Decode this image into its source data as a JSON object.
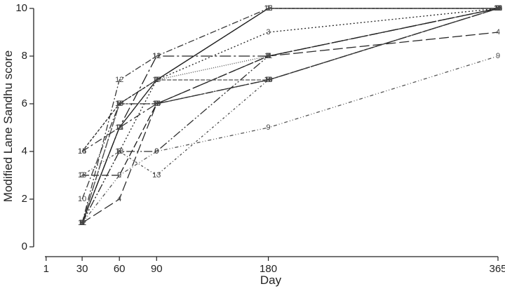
{
  "chart_data": {
    "type": "line",
    "xlabel": "Day",
    "ylabel": "Modified Lane Sandhu score",
    "x": [
      30,
      60,
      90,
      180,
      365
    ],
    "xticks": [
      1,
      30,
      60,
      90,
      180,
      365
    ],
    "yticks": [
      0,
      2,
      4,
      6,
      8,
      10
    ],
    "xlim": [
      0,
      365
    ],
    "ylim": [
      0,
      10
    ],
    "grid": false,
    "legend": "none",
    "series": [
      {
        "name": "1",
        "values": [
          1,
          5,
          7,
          10,
          10
        ],
        "color": "#111111",
        "dash": ""
      },
      {
        "name": "2",
        "values": [
          3,
          3,
          6,
          8,
          10
        ],
        "color": "#1a1a1a",
        "dash": "10,4"
      },
      {
        "name": "3",
        "values": [
          1,
          4,
          7,
          9,
          10
        ],
        "color": "#222222",
        "dash": "2,3"
      },
      {
        "name": "4",
        "values": [
          1,
          2,
          6,
          8,
          9
        ],
        "color": "#2a2a2a",
        "dash": "14,5"
      },
      {
        "name": "5",
        "values": [
          1,
          6,
          6,
          7,
          10
        ],
        "color": "#333333",
        "dash": "8,3,2,3"
      },
      {
        "name": "6",
        "values": [
          1,
          4,
          4,
          8,
          10
        ],
        "color": "#2f2f2f",
        "dash": "12,3,2,3,2,3"
      },
      {
        "name": "7",
        "values": [
          1,
          5,
          7,
          8,
          10
        ],
        "color": "#444444",
        "dash": "1,2"
      },
      {
        "name": "8",
        "values": [
          1,
          6,
          7,
          7,
          10
        ],
        "color": "#505050",
        "dash": "6,2"
      },
      {
        "name": "9",
        "values": [
          1,
          3,
          4,
          5,
          8
        ],
        "color": "#555555",
        "dash": "5,3,1,3,1,3"
      },
      {
        "name": "10",
        "values": [
          2,
          6,
          6,
          7,
          10
        ],
        "color": "#3a3a3a",
        "dash": "10,3,2,3"
      },
      {
        "name": "11",
        "values": [
          1,
          5,
          8,
          8,
          10
        ],
        "color": "#222222",
        "dash": "16,4,3,4"
      },
      {
        "name": "12",
        "values": [
          1,
          7,
          8,
          10,
          10
        ],
        "color": "#383838",
        "dash": "9,3,2,3"
      },
      {
        "name": "13",
        "values": [
          3,
          4,
          3,
          7,
          10
        ],
        "color": "#4a4a4a",
        "dash": "3,3,1,3"
      },
      {
        "name": "14",
        "values": [
          4,
          5,
          6,
          7,
          10
        ],
        "color": "#333333",
        "dash": "11,4,3,4"
      },
      {
        "name": "15",
        "values": [
          4,
          6,
          7,
          10,
          10
        ],
        "color": "#262626",
        "dash": "4,2"
      }
    ]
  }
}
